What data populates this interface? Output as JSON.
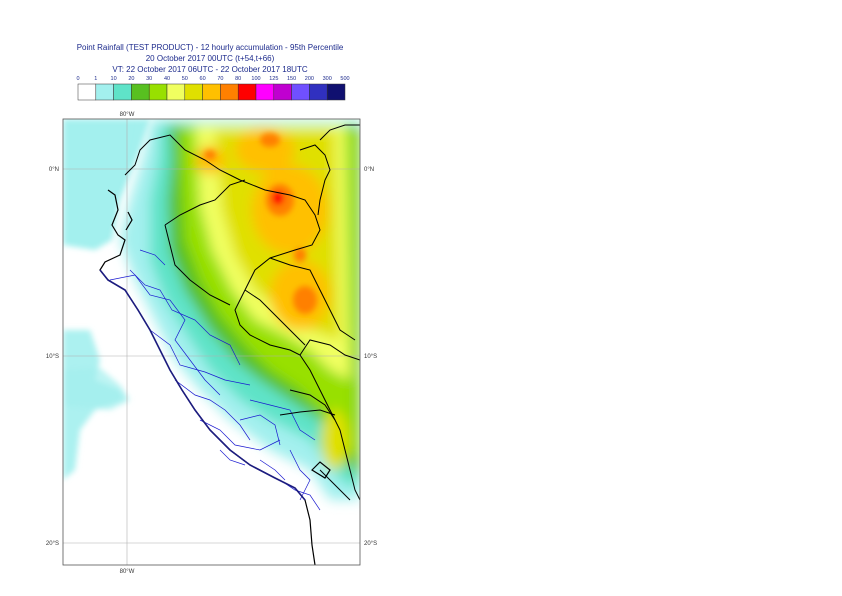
{
  "title": {
    "line1": "Point Rainfall (TEST PRODUCT) - 12 hourly accumulation - 95th Percentile",
    "line2": "20 October 2017 00UTC (t+54,t+66)",
    "line3": "VT: 22 October 2017 06UTC - 22 October 2017 18UTC"
  },
  "legend": {
    "thresholds": [
      "0",
      "1",
      "10",
      "20",
      "30",
      "40",
      "50",
      "60",
      "70",
      "80",
      "100",
      "125",
      "150",
      "200",
      "300",
      "500"
    ],
    "colors": [
      "#ffffff",
      "#a3f0ee",
      "#5fe3c8",
      "#58c020",
      "#98e000",
      "#f0ff60",
      "#e0e000",
      "#ffc000",
      "#ff8000",
      "#ff0000",
      "#ff00ff",
      "#c000d0",
      "#7050ff",
      "#3030c0",
      "#101070"
    ]
  },
  "axes": {
    "top_lon": "80°W",
    "bottom_lon": "80°W",
    "lat_labels": [
      "0°N",
      "10°S",
      "20°S"
    ]
  }
}
